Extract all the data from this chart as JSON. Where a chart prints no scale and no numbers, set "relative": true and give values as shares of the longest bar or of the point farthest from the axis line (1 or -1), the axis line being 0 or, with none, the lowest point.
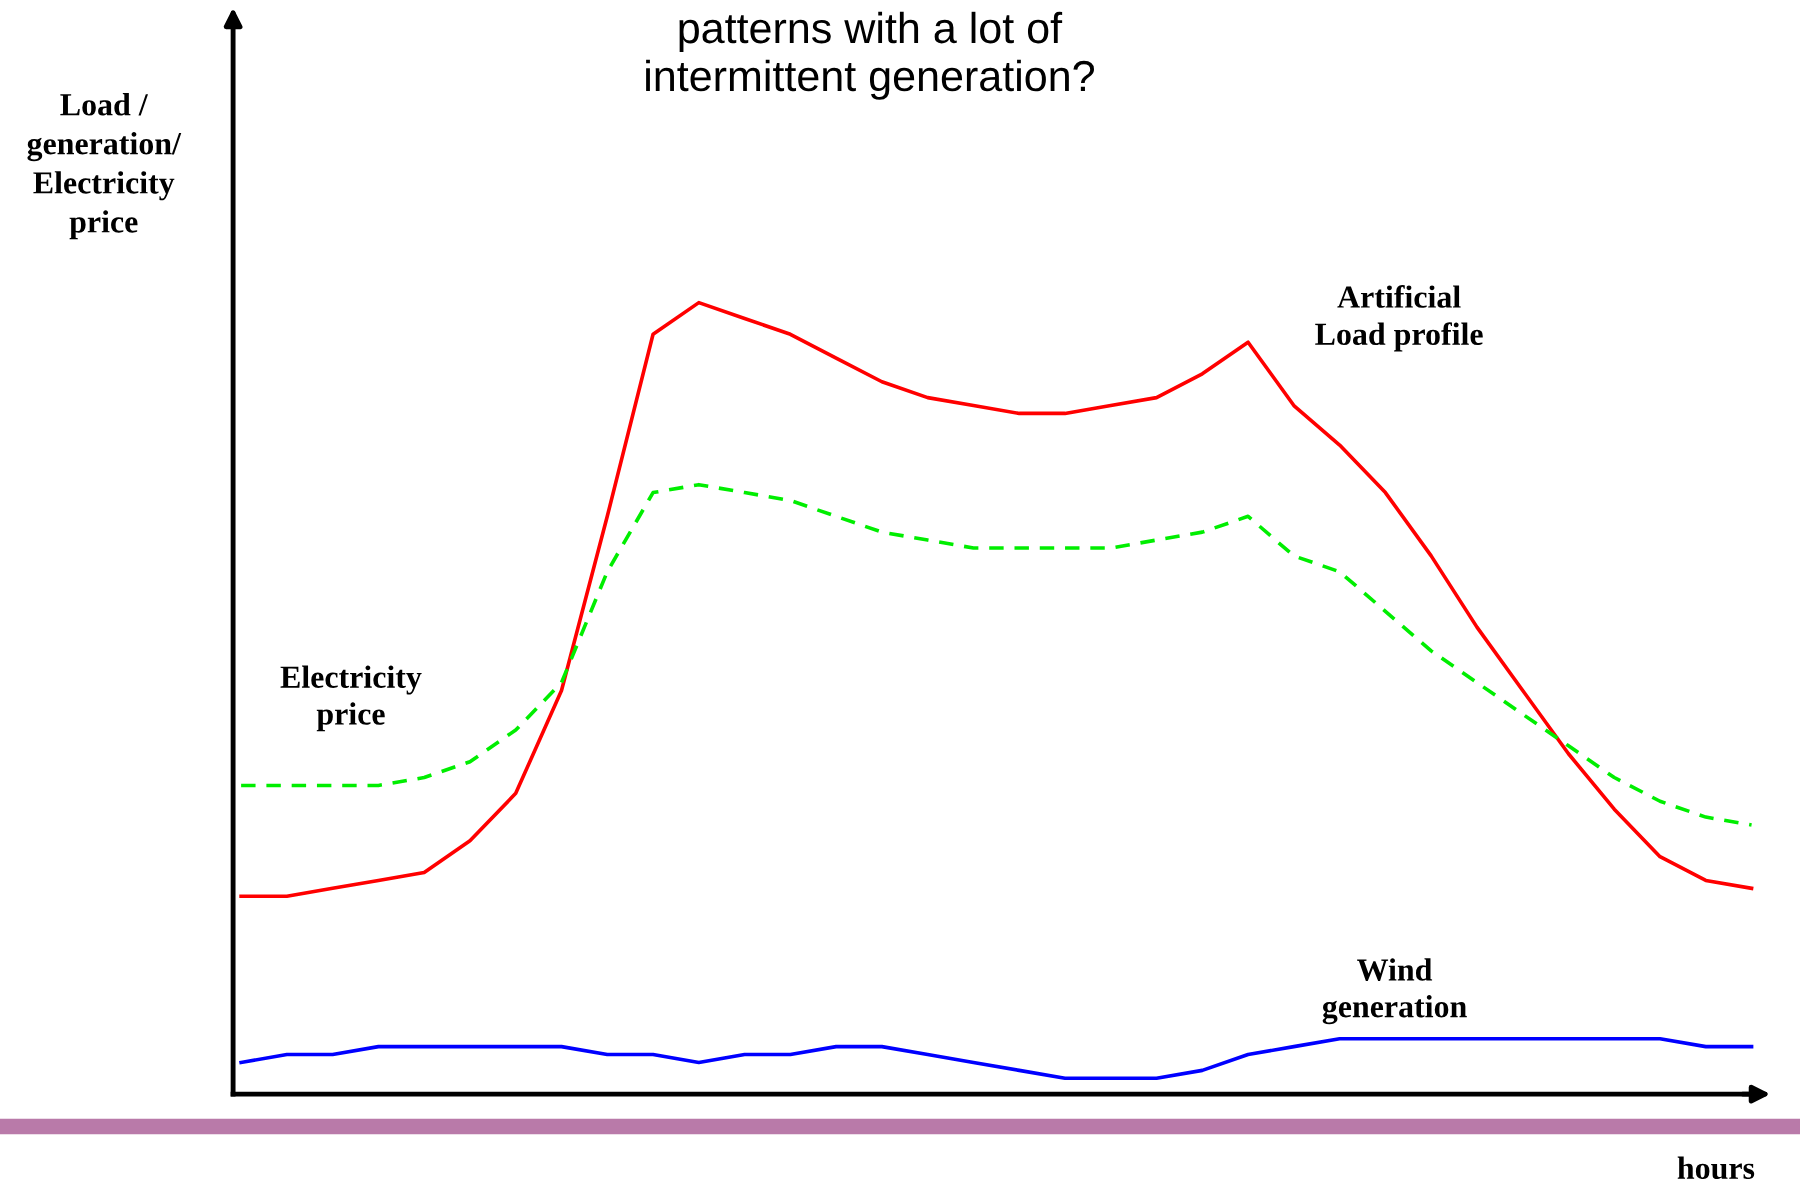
{
  "chart_data": {
    "type": "line",
    "relative": true,
    "title": "patterns with a lot of\nintermittent generation?",
    "ylabel": "Load /\ngeneration/\nElectricity\nprice",
    "xlabel": "hours",
    "legend": false,
    "categories": [
      null,
      null,
      null,
      null,
      null,
      null,
      null,
      null,
      null,
      null,
      null,
      null,
      null,
      null,
      null,
      null,
      null,
      null,
      null,
      null,
      null,
      null,
      null,
      null,
      null,
      null,
      null,
      null,
      null,
      null,
      null,
      null,
      null,
      null
    ],
    "series": [
      {
        "name": "Artificial\nLoad profile",
        "color": "#ff0000",
        "line_style": "solid",
        "values": [
          0.25,
          0.25,
          0.26,
          0.27,
          0.28,
          0.32,
          0.38,
          0.51,
          0.73,
          0.96,
          1.0,
          0.98,
          0.96,
          0.93,
          0.9,
          0.88,
          0.87,
          0.86,
          0.86,
          0.87,
          0.88,
          0.91,
          0.95,
          0.87,
          0.82,
          0.76,
          0.68,
          0.59,
          0.51,
          0.43,
          0.36,
          0.3,
          0.27,
          0.26
        ]
      },
      {
        "name": "Electricity\nprice",
        "color": "#00ee00",
        "line_style": "dashed",
        "values": [
          0.39,
          0.39,
          0.39,
          0.39,
          0.4,
          0.42,
          0.46,
          0.52,
          0.66,
          0.76,
          0.77,
          0.76,
          0.75,
          0.73,
          0.71,
          0.7,
          0.69,
          0.69,
          0.69,
          0.69,
          0.7,
          0.71,
          0.73,
          0.68,
          0.66,
          0.61,
          0.56,
          0.52,
          0.48,
          0.44,
          0.4,
          0.37,
          0.35,
          0.34
        ]
      },
      {
        "name": "Wind\ngeneration",
        "color": "#0000ff",
        "line_style": "solid",
        "values": [
          0.04,
          0.05,
          0.05,
          0.06,
          0.06,
          0.06,
          0.06,
          0.06,
          0.05,
          0.05,
          0.04,
          0.05,
          0.05,
          0.06,
          0.06,
          0.05,
          0.04,
          0.03,
          0.02,
          0.02,
          0.02,
          0.03,
          0.05,
          0.06,
          0.07,
          0.07,
          0.07,
          0.07,
          0.07,
          0.07,
          0.07,
          0.07,
          0.06,
          0.06
        ]
      }
    ]
  }
}
